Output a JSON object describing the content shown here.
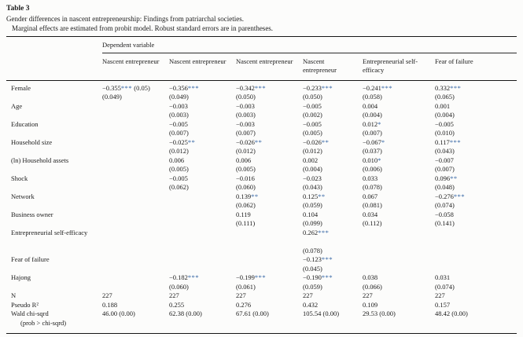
{
  "title": "Table 3",
  "caption": "Gender differences in nascent entrepreneurship: Findings from patriarchal societies.",
  "note": "Marginal effects are estimated from probit model. Robust standard errors are in parentheses.",
  "colors": {
    "star": "#3465a4",
    "text": "#1b1b1b"
  },
  "table": {
    "spanner": "Dependent variable",
    "columns": [
      "Nascent entrepreneur",
      "Nascent entrepreneur",
      "Nascent entrepreneur",
      "Nascent entrepreneur",
      "Entrepreneurial self-efficacy",
      "Fear of failure"
    ],
    "rows": [
      {
        "label": "Female",
        "cells": [
          {
            "v": "−0.355*** (0.05)",
            "se": "(0.049)"
          },
          {
            "v": "−0.356***",
            "se": "(0.049)"
          },
          {
            "v": "−0.342***",
            "se": "(0.050)"
          },
          {
            "v": "−0.233***",
            "se": "(0.050)"
          },
          {
            "v": "−0.241***",
            "se": "(0.058)"
          },
          {
            "v": "0.332***",
            "se": "(0.065)"
          }
        ]
      },
      {
        "label": "Age",
        "cells": [
          null,
          {
            "v": "−0.003",
            "se": "(0.003)"
          },
          {
            "v": "−0.003",
            "se": "(0.003)"
          },
          {
            "v": "−0.005",
            "se": "(0.002)"
          },
          {
            "v": "0.004",
            "se": "(0.004)"
          },
          {
            "v": "0.001",
            "se": "(0.004)"
          }
        ]
      },
      {
        "label": "Education",
        "cells": [
          null,
          {
            "v": "−0.005",
            "se": "(0.007)"
          },
          {
            "v": "−0.003",
            "se": "(0.007)"
          },
          {
            "v": "−0.005",
            "se": "(0.005)"
          },
          {
            "v": "0.012*",
            "se": "(0.007)"
          },
          {
            "v": "−0.005",
            "se": "(0.010)"
          }
        ]
      },
      {
        "label": "Household size",
        "cells": [
          null,
          {
            "v": "−0.025**",
            "se": "(0.012)"
          },
          {
            "v": "−0.026**",
            "se": "(0.012)"
          },
          {
            "v": "−0.026**",
            "se": "(0.012)"
          },
          {
            "v": "−0.067*",
            "se": "(0.037)"
          },
          {
            "v": "0.117***",
            "se": "(0.043)"
          }
        ]
      },
      {
        "label": "(ln) Household assets",
        "cells": [
          null,
          {
            "v": "0.006",
            "se": "(0.005)"
          },
          {
            "v": "0.006",
            "se": "(0.005)"
          },
          {
            "v": "0.002",
            "se": "(0.004)"
          },
          {
            "v": "0.010*",
            "se": "(0.006)"
          },
          {
            "v": "−0.007",
            "se": "(0.007)"
          }
        ]
      },
      {
        "label": "Shock",
        "cells": [
          null,
          {
            "v": "−0.005",
            "se": "(0.062)"
          },
          {
            "v": "−0.016",
            "se": "(0.060)"
          },
          {
            "v": "−0.023",
            "se": "(0.043)"
          },
          {
            "v": "0.033",
            "se": "(0.078)"
          },
          {
            "v": "0.096**",
            "se": "(0.048)"
          }
        ]
      },
      {
        "label": "Network",
        "cells": [
          null,
          null,
          {
            "v": "0.139**",
            "se": "(0.062)"
          },
          {
            "v": "0.125**",
            "se": "(0.059)"
          },
          {
            "v": "0.067",
            "se": "(0.081)"
          },
          {
            "v": "−0.276***",
            "se": "(0.074)"
          }
        ]
      },
      {
        "label": "Business owner",
        "cells": [
          null,
          null,
          {
            "v": "0.119",
            "se": "(0.111)"
          },
          {
            "v": "0.104",
            "se": "(0.099)"
          },
          {
            "v": "0.034",
            "se": "(0.112)"
          },
          {
            "v": "−0.058",
            "se": "(0.141)"
          }
        ]
      },
      {
        "label": "Entrepreneurial self-efficacy",
        "cells": [
          null,
          null,
          null,
          {
            "v": "0.262***",
            "se": "(0.078)"
          },
          null,
          null
        ]
      },
      {
        "label": "Fear of failure",
        "cells": [
          null,
          null,
          null,
          {
            "v": "−0.123***",
            "se": "(0.045)"
          },
          null,
          null
        ]
      },
      {
        "label": "Hajong",
        "cells": [
          null,
          {
            "v": "−0.182***",
            "se": "(0.060)"
          },
          {
            "v": "−0.199***",
            "se": "(0.061)"
          },
          {
            "v": "−0.190***",
            "se": "(0.059)"
          },
          {
            "v": "0.038",
            "se": "(0.066)"
          },
          {
            "v": "0.031",
            "se": "(0.074)"
          }
        ]
      },
      {
        "label": "N",
        "cells": [
          {
            "v": "227"
          },
          {
            "v": "227"
          },
          {
            "v": "227"
          },
          {
            "v": "227"
          },
          {
            "v": "227"
          },
          {
            "v": "227"
          }
        ]
      },
      {
        "label": "Pseudo R²",
        "cells": [
          {
            "v": "0.188"
          },
          {
            "v": "0.255"
          },
          {
            "v": "0.276"
          },
          {
            "v": "0.432"
          },
          {
            "v": "0.109"
          },
          {
            "v": "0.157"
          }
        ]
      },
      {
        "label": "Wald chi-sqrd",
        "label2": "(prob > chi-sqrd)",
        "cells": [
          {
            "v": "46.00 (0.00)"
          },
          {
            "v": "62.38 (0.00)"
          },
          {
            "v": "67.61 (0.00)"
          },
          {
            "v": "105.54 (0.00)"
          },
          {
            "v": "29.53 (0.00)"
          },
          {
            "v": "48.42 (0.00)"
          }
        ]
      }
    ]
  }
}
